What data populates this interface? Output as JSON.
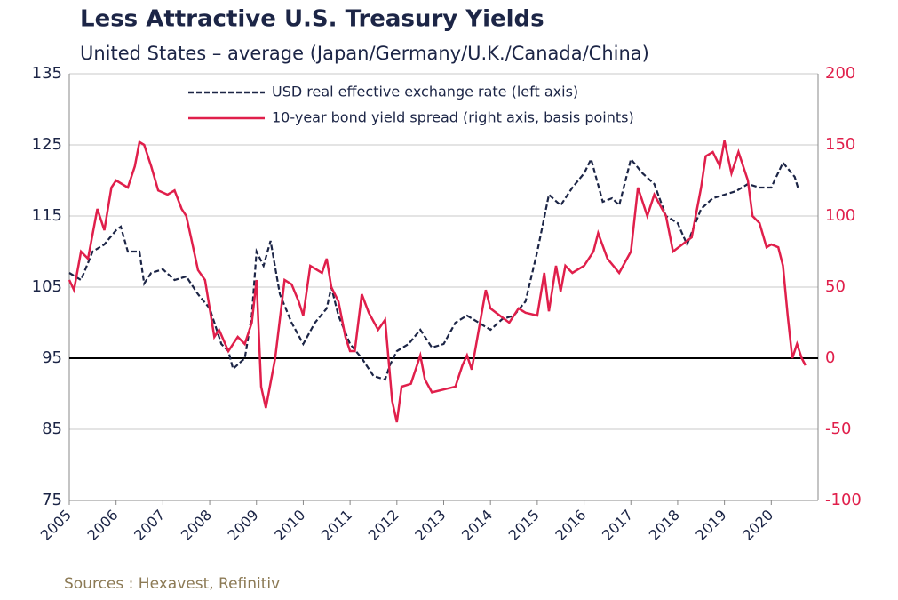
{
  "chart_data": {
    "type": "line",
    "title": "Less Attractive U.S. Treasury Yields",
    "subtitle": "United States – average (Japan/Germany/U.K./Canada/China)",
    "source": "Sources : Hexavest, Refinitiv",
    "xlim": [
      2005,
      2021
    ],
    "xticks": [
      2005,
      2006,
      2007,
      2008,
      2009,
      2010,
      2011,
      2012,
      2013,
      2014,
      2015,
      2016,
      2017,
      2018,
      2019,
      2020
    ],
    "ylim": [
      75,
      135
    ],
    "yticks": [
      75,
      85,
      95,
      105,
      115,
      125,
      135
    ],
    "y2lim": [
      -100,
      200
    ],
    "y2ticks": [
      -100,
      -50,
      0,
      50,
      100,
      150,
      200
    ],
    "reference_line": 95,
    "grid": true,
    "series": [
      {
        "name": "USD real effective exchange rate (left axis)",
        "color": "#1c2546",
        "dash": true,
        "x": [
          2005.0,
          2005.25,
          2005.5,
          2005.75,
          2006.0,
          2006.1,
          2006.25,
          2006.5,
          2006.6,
          2006.75,
          2007.0,
          2007.25,
          2007.5,
          2007.75,
          2008.0,
          2008.25,
          2008.4,
          2008.5,
          2008.75,
          2008.9,
          2009.0,
          2009.15,
          2009.3,
          2009.5,
          2009.75,
          2010.0,
          2010.25,
          2010.5,
          2010.6,
          2010.75,
          2011.0,
          2011.25,
          2011.5,
          2011.75,
          2011.85,
          2012.0,
          2012.25,
          2012.5,
          2012.75,
          2013.0,
          2013.25,
          2013.5,
          2013.75,
          2014.0,
          2014.25,
          2014.5,
          2014.75,
          2015.0,
          2015.25,
          2015.5,
          2015.75,
          2016.0,
          2016.15,
          2016.4,
          2016.6,
          2016.75,
          2017.0,
          2017.25,
          2017.5,
          2017.75,
          2018.0,
          2018.2,
          2018.5,
          2018.75,
          2019.0,
          2019.25,
          2019.5,
          2019.75,
          2020.0,
          2020.25,
          2020.5,
          2020.57
        ],
        "values": [
          107,
          106,
          110,
          111,
          113,
          113.5,
          110,
          110,
          105.5,
          107,
          107.5,
          106,
          106.5,
          104,
          102,
          97,
          96,
          93.5,
          95,
          101,
          110,
          108,
          111.5,
          104,
          100,
          97,
          100,
          102,
          105,
          101,
          97,
          95,
          92.5,
          92,
          94,
          96,
          97,
          99,
          96.5,
          97,
          100,
          101,
          100,
          99,
          100.5,
          101,
          103,
          110,
          118,
          116.5,
          119,
          121,
          123,
          117,
          117.5,
          116.5,
          123,
          121,
          119.5,
          115,
          114,
          111,
          116,
          117.5,
          118,
          118.5,
          119.5,
          119,
          119,
          122.5,
          120.5,
          119
        ]
      },
      {
        "name": "10-year bond yield spread (right axis, basis points)",
        "color": "#e01f4b",
        "dash": false,
        "axis": "y2",
        "x": [
          2005.0,
          2005.1,
          2005.25,
          2005.4,
          2005.6,
          2005.75,
          2005.9,
          2006.0,
          2006.25,
          2006.4,
          2006.5,
          2006.6,
          2006.75,
          2006.9,
          2007.1,
          2007.25,
          2007.4,
          2007.5,
          2007.6,
          2007.75,
          2007.9,
          2008.1,
          2008.2,
          2008.4,
          2008.6,
          2008.75,
          2008.9,
          2009.0,
          2009.1,
          2009.2,
          2009.4,
          2009.6,
          2009.75,
          2009.9,
          2010.0,
          2010.15,
          2010.4,
          2010.5,
          2010.6,
          2010.75,
          2010.9,
          2011.0,
          2011.1,
          2011.25,
          2011.4,
          2011.6,
          2011.75,
          2011.9,
          2012.0,
          2012.1,
          2012.3,
          2012.5,
          2012.6,
          2012.75,
          2013.0,
          2013.25,
          2013.4,
          2013.5,
          2013.6,
          2013.75,
          2013.9,
          2014.0,
          2014.2,
          2014.4,
          2014.6,
          2014.75,
          2015.0,
          2015.15,
          2015.25,
          2015.4,
          2015.5,
          2015.6,
          2015.75,
          2016.0,
          2016.2,
          2016.3,
          2016.5,
          2016.75,
          2017.0,
          2017.15,
          2017.35,
          2017.5,
          2017.75,
          2017.9,
          2018.1,
          2018.3,
          2018.5,
          2018.6,
          2018.75,
          2018.9,
          2019.0,
          2019.15,
          2019.3,
          2019.5,
          2019.6,
          2019.75,
          2019.9,
          2020.0,
          2020.15,
          2020.25,
          2020.35,
          2020.45,
          2020.55,
          2020.65,
          2020.73
        ],
        "values": [
          55,
          48,
          75,
          70,
          105,
          90,
          120,
          125,
          120,
          135,
          152,
          150,
          135,
          118,
          115,
          118,
          105,
          100,
          85,
          62,
          55,
          15,
          20,
          5,
          15,
          10,
          25,
          55,
          -20,
          -35,
          0,
          55,
          52,
          40,
          30,
          65,
          60,
          70,
          50,
          40,
          15,
          5,
          5,
          45,
          32,
          20,
          27,
          -30,
          -45,
          -20,
          -18,
          2,
          -15,
          -24,
          -22,
          -20,
          -5,
          2,
          -8,
          20,
          48,
          35,
          30,
          25,
          35,
          32,
          30,
          60,
          33,
          65,
          47,
          65,
          60,
          65,
          75,
          88,
          70,
          60,
          75,
          120,
          100,
          115,
          100,
          75,
          80,
          85,
          120,
          142,
          145,
          135,
          153,
          130,
          145,
          125,
          100,
          95,
          78,
          80,
          78,
          65,
          30,
          0,
          10,
          0,
          -5
        ]
      }
    ]
  }
}
